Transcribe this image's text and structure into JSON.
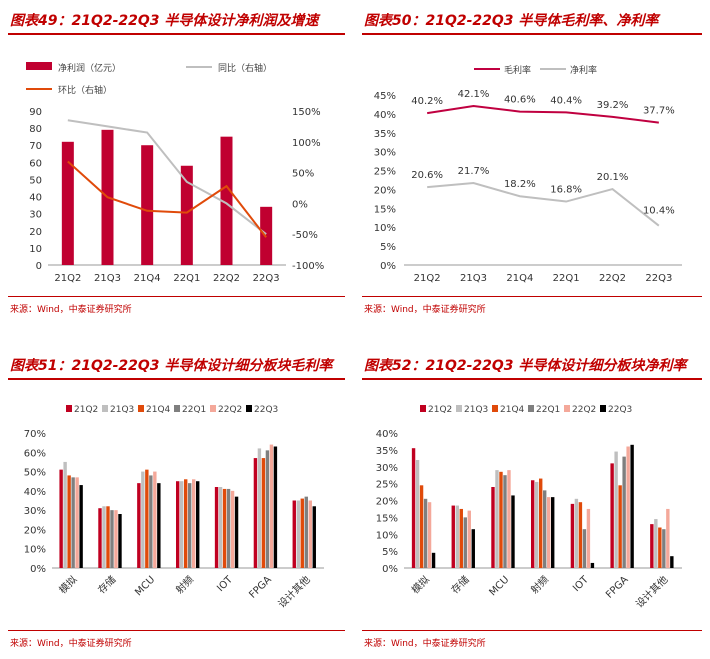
{
  "source_text": "来源：Wind，中泰证券研究所",
  "colors": {
    "accent": "#c00000",
    "gray": "#bfbfbf",
    "orange": "#e04a0a"
  },
  "chart_data": [
    {
      "id": "c49",
      "type": "bar",
      "title": "图表49：21Q2-22Q3 半导体设计净利润及增速",
      "categories": [
        "21Q2",
        "21Q3",
        "21Q4",
        "22Q1",
        "22Q2",
        "22Q3"
      ],
      "series": [
        {
          "name": "净利润（亿元）",
          "type": "bar",
          "axis": "left",
          "values": [
            72,
            79,
            70,
            58,
            75,
            34
          ]
        },
        {
          "name": "同比（右轴）",
          "type": "line",
          "axis": "right",
          "values": [
            135,
            125,
            115,
            35,
            0,
            -50
          ]
        },
        {
          "name": "环比（右轴）",
          "type": "line",
          "axis": "right",
          "values": [
            68,
            10,
            -12,
            -15,
            28,
            -55
          ]
        }
      ],
      "ylim": [
        0,
        90
      ],
      "yticks": [
        0,
        10,
        20,
        30,
        40,
        50,
        60,
        70,
        80,
        90
      ],
      "y2lim": [
        -100,
        150
      ],
      "y2ticks": [
        "-100%",
        "-50%",
        "0%",
        "50%",
        "100%",
        "150%"
      ],
      "legend": "top"
    },
    {
      "id": "c50",
      "type": "line",
      "title": "图表50：21Q2-22Q3 半导体毛利率、净利率",
      "categories": [
        "21Q2",
        "21Q3",
        "21Q4",
        "22Q1",
        "22Q2",
        "22Q3"
      ],
      "series": [
        {
          "name": "毛利率",
          "values": [
            40.2,
            42.1,
            40.6,
            40.4,
            39.2,
            37.7
          ],
          "labels": [
            "40.2%",
            "42.1%",
            "40.6%",
            "40.4%",
            "39.2%",
            "37.7%"
          ]
        },
        {
          "name": "净利率",
          "values": [
            20.6,
            21.7,
            18.2,
            16.8,
            20.1,
            10.4
          ],
          "labels": [
            "20.6%",
            "21.7%",
            "18.2%",
            "16.8%",
            "20.1%",
            "10.4%"
          ]
        }
      ],
      "ylim": [
        0,
        45
      ],
      "yticks": [
        "0%",
        "5%",
        "10%",
        "15%",
        "20%",
        "25%",
        "30%",
        "35%",
        "40%",
        "45%"
      ],
      "legend": "top-left"
    },
    {
      "id": "c51",
      "type": "bar",
      "title": "图表51：21Q2-22Q3 半导体设计细分板块毛利率",
      "categories": [
        "模拟",
        "存储",
        "MCU",
        "射频",
        "IOT",
        "FPGA",
        "设计其他"
      ],
      "series": [
        {
          "name": "21Q2",
          "values": [
            51,
            31,
            44,
            45,
            42,
            57,
            35
          ]
        },
        {
          "name": "21Q3",
          "values": [
            55,
            32,
            50,
            45,
            42,
            62,
            35
          ]
        },
        {
          "name": "21Q4",
          "values": [
            48,
            32,
            51,
            46,
            41,
            57,
            36
          ]
        },
        {
          "name": "22Q1",
          "values": [
            47,
            30,
            48,
            44,
            41,
            61,
            37
          ]
        },
        {
          "name": "22Q2",
          "values": [
            47,
            30,
            50,
            46,
            40,
            64,
            35
          ]
        },
        {
          "name": "22Q3",
          "values": [
            43,
            28,
            44,
            45,
            37,
            63,
            32
          ]
        }
      ],
      "ylim": [
        0,
        70
      ],
      "yticks": [
        "0%",
        "10%",
        "20%",
        "30%",
        "40%",
        "50%",
        "60%",
        "70%"
      ],
      "legend": "top"
    },
    {
      "id": "c52",
      "type": "bar",
      "title": "图表52：21Q2-22Q3 半导体设计细分板块净利率",
      "categories": [
        "模拟",
        "存储",
        "MCU",
        "射频",
        "IOT",
        "FPGA",
        "设计其他"
      ],
      "series": [
        {
          "name": "21Q2",
          "values": [
            35.5,
            18.5,
            24,
            26,
            19,
            31,
            13
          ]
        },
        {
          "name": "21Q3",
          "values": [
            32,
            18.5,
            29,
            25.5,
            20.5,
            34.5,
            14.5
          ]
        },
        {
          "name": "21Q4",
          "values": [
            24.5,
            17.5,
            28.5,
            26.5,
            19.5,
            24.5,
            12
          ]
        },
        {
          "name": "22Q1",
          "values": [
            20.5,
            15,
            27.5,
            23,
            11.5,
            33,
            11.5
          ]
        },
        {
          "name": "22Q2",
          "values": [
            19.5,
            17,
            29,
            21,
            17.5,
            36,
            17.5
          ]
        },
        {
          "name": "22Q3",
          "values": [
            4.5,
            11.5,
            21.5,
            21,
            1.5,
            36.5,
            3.5
          ]
        }
      ],
      "ylim": [
        0,
        40
      ],
      "yticks": [
        "0%",
        "5%",
        "10%",
        "15%",
        "20%",
        "25%",
        "30%",
        "35%",
        "40%"
      ],
      "legend": "top"
    }
  ]
}
